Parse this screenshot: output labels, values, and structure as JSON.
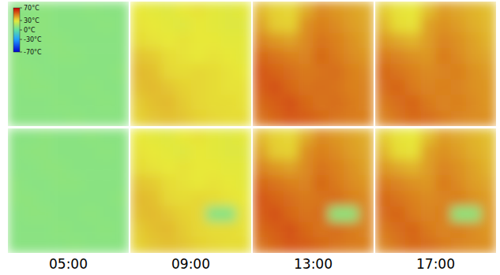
{
  "chart_data": {
    "type": "heatmap",
    "x": [
      "05:00",
      "09:00",
      "13:00",
      "17:00"
    ],
    "colorbar": {
      "range": [
        -70,
        70
      ],
      "ticks": [
        {
          "value": 70,
          "label": "70°C"
        },
        {
          "value": 30,
          "label": "30°C"
        },
        {
          "value": 0,
          "label": "0°C"
        },
        {
          "value": -30,
          "label": "-30°C"
        },
        {
          "value": -70,
          "label": "-70°C"
        }
      ]
    },
    "cells": [
      [
        [
          [
            9,
            9,
            10,
            9,
            9,
            10,
            9,
            9
          ],
          [
            9,
            10,
            10,
            9,
            9,
            9,
            10,
            9
          ],
          [
            9,
            9,
            10,
            10,
            9,
            9,
            9,
            9
          ],
          [
            10,
            9,
            9,
            10,
            10,
            9,
            9,
            9
          ],
          [
            10,
            10,
            9,
            9,
            9,
            9,
            9,
            10
          ],
          [
            9,
            10,
            10,
            9,
            9,
            10,
            9,
            9
          ],
          [
            9,
            9,
            9,
            10,
            9,
            9,
            10,
            9
          ],
          [
            9,
            9,
            9,
            9,
            10,
            9,
            9,
            9
          ]
        ],
        [
          [
            30,
            29,
            28,
            30,
            31,
            29,
            28,
            29
          ],
          [
            31,
            30,
            29,
            28,
            30,
            29,
            28,
            28
          ],
          [
            32,
            31,
            30,
            31,
            30,
            30,
            29,
            29
          ],
          [
            36,
            35,
            32,
            31,
            30,
            31,
            30,
            29
          ],
          [
            38,
            37,
            33,
            32,
            33,
            32,
            31,
            30
          ],
          [
            37,
            38,
            36,
            34,
            33,
            32,
            31,
            31
          ],
          [
            35,
            37,
            38,
            35,
            33,
            32,
            32,
            31
          ],
          [
            34,
            36,
            37,
            36,
            34,
            33,
            32,
            32
          ]
        ],
        [
          [
            38,
            34,
            33,
            40,
            46,
            44,
            42,
            40
          ],
          [
            42,
            35,
            34,
            45,
            48,
            46,
            43,
            41
          ],
          [
            47,
            44,
            42,
            46,
            50,
            48,
            45,
            42
          ],
          [
            52,
            50,
            48,
            47,
            52,
            49,
            46,
            44
          ],
          [
            55,
            53,
            51,
            49,
            50,
            51,
            48,
            46
          ],
          [
            54,
            56,
            52,
            50,
            51,
            50,
            48,
            47
          ],
          [
            52,
            54,
            56,
            52,
            50,
            51,
            49,
            47
          ],
          [
            50,
            53,
            55,
            54,
            52,
            50,
            49,
            48
          ]
        ],
        [
          [
            35,
            31,
            30,
            37,
            43,
            41,
            39,
            37
          ],
          [
            39,
            32,
            31,
            42,
            45,
            43,
            40,
            38
          ],
          [
            44,
            41,
            39,
            43,
            47,
            45,
            42,
            39
          ],
          [
            49,
            47,
            45,
            44,
            49,
            46,
            43,
            41
          ],
          [
            52,
            50,
            48,
            46,
            47,
            48,
            45,
            43
          ],
          [
            51,
            53,
            49,
            47,
            48,
            47,
            45,
            44
          ],
          [
            49,
            51,
            53,
            49,
            47,
            48,
            46,
            44
          ],
          [
            47,
            50,
            52,
            51,
            49,
            47,
            46,
            45
          ]
        ]
      ],
      [
        [
          [
            9,
            9,
            10,
            9,
            9,
            10,
            9,
            9
          ],
          [
            9,
            10,
            10,
            9,
            9,
            9,
            10,
            9
          ],
          [
            9,
            9,
            10,
            10,
            9,
            9,
            9,
            9
          ],
          [
            10,
            9,
            9,
            10,
            10,
            9,
            9,
            9
          ],
          [
            10,
            10,
            9,
            9,
            9,
            9,
            9,
            10
          ],
          [
            9,
            10,
            10,
            9,
            9,
            10,
            9,
            9
          ],
          [
            9,
            9,
            9,
            10,
            9,
            9,
            10,
            9
          ],
          [
            9,
            9,
            9,
            9,
            10,
            9,
            9,
            9
          ]
        ],
        [
          [
            30,
            29,
            28,
            30,
            31,
            29,
            28,
            29
          ],
          [
            31,
            30,
            29,
            28,
            30,
            29,
            28,
            28
          ],
          [
            32,
            31,
            30,
            31,
            30,
            30,
            29,
            29
          ],
          [
            36,
            35,
            32,
            31,
            30,
            31,
            30,
            29
          ],
          [
            38,
            37,
            33,
            32,
            33,
            32,
            31,
            30
          ],
          [
            37,
            38,
            36,
            34,
            33,
            8,
            8,
            31
          ],
          [
            35,
            37,
            38,
            35,
            33,
            32,
            32,
            31
          ],
          [
            34,
            36,
            37,
            36,
            34,
            33,
            32,
            32
          ]
        ],
        [
          [
            38,
            34,
            33,
            40,
            46,
            44,
            42,
            40
          ],
          [
            42,
            35,
            34,
            45,
            48,
            46,
            43,
            41
          ],
          [
            47,
            44,
            42,
            46,
            50,
            48,
            45,
            42
          ],
          [
            52,
            50,
            48,
            47,
            52,
            49,
            46,
            44
          ],
          [
            55,
            53,
            51,
            49,
            50,
            51,
            48,
            46
          ],
          [
            54,
            56,
            52,
            50,
            51,
            10,
            10,
            47
          ],
          [
            52,
            54,
            56,
            52,
            50,
            51,
            49,
            47
          ],
          [
            50,
            53,
            55,
            54,
            52,
            50,
            49,
            48
          ]
        ],
        [
          [
            35,
            31,
            30,
            37,
            43,
            41,
            39,
            37
          ],
          [
            39,
            32,
            31,
            42,
            45,
            43,
            40,
            38
          ],
          [
            44,
            41,
            39,
            43,
            47,
            45,
            42,
            39
          ],
          [
            49,
            47,
            45,
            44,
            49,
            46,
            43,
            41
          ],
          [
            52,
            50,
            48,
            46,
            47,
            48,
            45,
            43
          ],
          [
            51,
            53,
            49,
            47,
            48,
            10,
            10,
            44
          ],
          [
            49,
            51,
            53,
            49,
            47,
            48,
            46,
            44
          ],
          [
            47,
            50,
            52,
            51,
            49,
            47,
            46,
            45
          ]
        ]
      ]
    ]
  }
}
